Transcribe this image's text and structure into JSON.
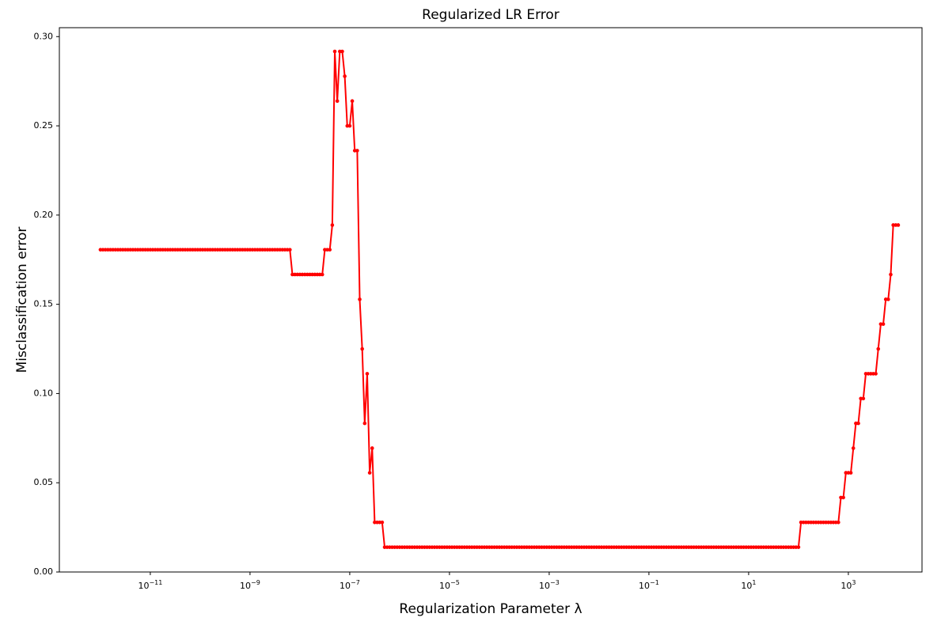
{
  "chart_data": {
    "type": "line",
    "title": "Regularized LR Error",
    "x_label": "Regularization Parameter λ",
    "y_label": "Misclassification error",
    "x_scale": "log",
    "markers": true,
    "line_width": 2,
    "xlim": [
      1.5e-13,
      30000
    ],
    "ylim": [
      0,
      0.305
    ],
    "xticks": [
      {
        "value": 1e-11,
        "label": "10−11"
      },
      {
        "value": 1e-09,
        "label": "10−9"
      },
      {
        "value": 1e-07,
        "label": "10−7"
      },
      {
        "value": 1e-05,
        "label": "10−5"
      },
      {
        "value": 0.001,
        "label": "10−3"
      },
      {
        "value": 0.1,
        "label": "10−1"
      },
      {
        "value": 10,
        "label": "101"
      },
      {
        "value": 1000,
        "label": "103"
      }
    ],
    "yticks": [
      {
        "value": 0,
        "label": "0.00"
      },
      {
        "value": 0.05,
        "label": "0.05"
      },
      {
        "value": 0.1,
        "label": "0.10"
      },
      {
        "value": 0.15,
        "label": "0.15"
      },
      {
        "value": 0.2,
        "label": "0.20"
      },
      {
        "value": 0.25,
        "label": "0.25"
      },
      {
        "value": 0.3,
        "label": "0.30"
      }
    ],
    "x": [
      1e-12,
      1.122e-12,
      1.259e-12,
      1.413e-12,
      1.585e-12,
      1.778e-12,
      1.995e-12,
      2.239e-12,
      2.512e-12,
      2.818e-12,
      3.162e-12,
      3.548e-12,
      3.981e-12,
      4.467e-12,
      5.012e-12,
      5.623e-12,
      6.31e-12,
      7.079e-12,
      7.943e-12,
      8.913e-12,
      1e-11,
      1.122e-11,
      1.259e-11,
      1.413e-11,
      1.585e-11,
      1.778e-11,
      1.995e-11,
      2.239e-11,
      2.512e-11,
      2.818e-11,
      3.162e-11,
      3.548e-11,
      3.981e-11,
      4.467e-11,
      5.012e-11,
      5.623e-11,
      6.31e-11,
      7.079e-11,
      7.943e-11,
      8.913e-11,
      1e-10,
      1.122e-10,
      1.259e-10,
      1.413e-10,
      1.585e-10,
      1.778e-10,
      1.995e-10,
      2.239e-10,
      2.512e-10,
      2.818e-10,
      3.162e-10,
      3.548e-10,
      3.981e-10,
      4.467e-10,
      5.012e-10,
      5.623e-10,
      6.31e-10,
      7.079e-10,
      7.943e-10,
      8.913e-10,
      1e-09,
      1.122e-09,
      1.259e-09,
      1.413e-09,
      1.585e-09,
      1.778e-09,
      1.995e-09,
      2.239e-09,
      2.512e-09,
      2.818e-09,
      3.162e-09,
      3.548e-09,
      3.981e-09,
      4.467e-09,
      5.012e-09,
      5.623e-09,
      6.31e-09,
      7.079e-09,
      7.943e-09,
      8.913e-09,
      1e-08,
      1.122e-08,
      1.259e-08,
      1.413e-08,
      1.585e-08,
      1.778e-08,
      1.995e-08,
      2.239e-08,
      2.512e-08,
      2.818e-08,
      3.162e-08,
      3.548e-08,
      3.981e-08,
      4.467e-08,
      5.012e-08,
      5.623e-08,
      6.31e-08,
      7.079e-08,
      7.943e-08,
      8.913e-08,
      1e-07,
      1.122e-07,
      1.259e-07,
      1.413e-07,
      1.585e-07,
      1.778e-07,
      1.995e-07,
      2.239e-07,
      2.512e-07,
      2.818e-07,
      3.162e-07,
      3.548e-07,
      3.981e-07,
      4.467e-07,
      5.012e-07,
      5.623e-07,
      6.31e-07,
      7.079e-07,
      7.943e-07,
      8.913e-07,
      1e-06,
      1.122e-06,
      1.259e-06,
      1.413e-06,
      1.585e-06,
      1.778e-06,
      1.995e-06,
      2.239e-06,
      2.512e-06,
      2.818e-06,
      3.162e-06,
      3.548e-06,
      3.981e-06,
      4.467e-06,
      5.012e-06,
      5.623e-06,
      6.31e-06,
      7.079e-06,
      7.943e-06,
      8.913e-06,
      1e-05,
      1.122e-05,
      1.259e-05,
      1.413e-05,
      1.585e-05,
      1.778e-05,
      1.995e-05,
      2.239e-05,
      2.512e-05,
      2.818e-05,
      3.162e-05,
      3.548e-05,
      3.981e-05,
      4.467e-05,
      5.012e-05,
      5.623e-05,
      6.31e-05,
      7.079e-05,
      7.943e-05,
      8.913e-05,
      0.0001,
      0.0001122,
      0.0001259,
      0.0001413,
      0.0001585,
      0.0001778,
      0.0001995,
      0.0002239,
      0.0002512,
      0.0002818,
      0.0003162,
      0.0003548,
      0.0003981,
      0.0004467,
      0.0005012,
      0.0005623,
      0.000631,
      0.0007079,
      0.0007943,
      0.0008913,
      0.001,
      0.001122,
      0.001259,
      0.001413,
      0.001585,
      0.001778,
      0.001995,
      0.002239,
      0.002512,
      0.002818,
      0.003162,
      0.003548,
      0.003981,
      0.004467,
      0.005012,
      0.005623,
      0.00631,
      0.007079,
      0.007943,
      0.008913,
      0.01,
      0.01122,
      0.01259,
      0.01413,
      0.01585,
      0.01778,
      0.01995,
      0.02239,
      0.02512,
      0.02818,
      0.03162,
      0.03548,
      0.03981,
      0.04467,
      0.05012,
      0.05623,
      0.0631,
      0.07079,
      0.07943,
      0.08913,
      0.1,
      0.1122,
      0.1259,
      0.1413,
      0.1585,
      0.1778,
      0.1995,
      0.2239,
      0.2512,
      0.2818,
      0.3162,
      0.3548,
      0.3981,
      0.4467,
      0.5012,
      0.5623,
      0.631,
      0.7079,
      0.7943,
      0.8913,
      1,
      1.122,
      1.259,
      1.413,
      1.585,
      1.778,
      1.995,
      2.239,
      2.512,
      2.818,
      3.162,
      3.548,
      3.981,
      4.467,
      5.012,
      5.623,
      6.31,
      7.079,
      7.943,
      8.913,
      10,
      11.22,
      12.59,
      14.13,
      15.85,
      17.78,
      19.95,
      22.39,
      25.12,
      28.18,
      31.62,
      35.48,
      39.81,
      44.67,
      50.12,
      56.23,
      63.1,
      70.79,
      79.43,
      89.13,
      100,
      112.2,
      125.9,
      141.3,
      158.5,
      177.8,
      199.5,
      223.9,
      251.2,
      281.8,
      316.2,
      354.8,
      398.1,
      446.7,
      501.2,
      562.3,
      631,
      707.9,
      794.3,
      891.3,
      1000,
      1122,
      1259,
      1413,
      1585,
      1778,
      1995,
      2239,
      2512,
      2818,
      3162,
      3548,
      3981,
      4467,
      5012,
      5623,
      6310,
      7079,
      7943,
      8913,
      10000
    ],
    "series": [
      {
        "color": "#ff0000",
        "values": [
          0.1806,
          0.1806,
          0.1806,
          0.1806,
          0.1806,
          0.1806,
          0.1806,
          0.1806,
          0.1806,
          0.1806,
          0.1806,
          0.1806,
          0.1806,
          0.1806,
          0.1806,
          0.1806,
          0.1806,
          0.1806,
          0.1806,
          0.1806,
          0.1806,
          0.1806,
          0.1806,
          0.1806,
          0.1806,
          0.1806,
          0.1806,
          0.1806,
          0.1806,
          0.1806,
          0.1806,
          0.1806,
          0.1806,
          0.1806,
          0.1806,
          0.1806,
          0.1806,
          0.1806,
          0.1806,
          0.1806,
          0.1806,
          0.1806,
          0.1806,
          0.1806,
          0.1806,
          0.1806,
          0.1806,
          0.1806,
          0.1806,
          0.1806,
          0.1806,
          0.1806,
          0.1806,
          0.1806,
          0.1806,
          0.1806,
          0.1806,
          0.1806,
          0.1806,
          0.1806,
          0.1806,
          0.1806,
          0.1806,
          0.1806,
          0.1806,
          0.1806,
          0.1806,
          0.1806,
          0.1806,
          0.1806,
          0.1806,
          0.1806,
          0.1806,
          0.1806,
          0.1806,
          0.1806,
          0.1806,
          0.1667,
          0.1667,
          0.1667,
          0.1667,
          0.1667,
          0.1667,
          0.1667,
          0.1667,
          0.1667,
          0.1667,
          0.1667,
          0.1667,
          0.1667,
          0.1806,
          0.1806,
          0.1806,
          0.1944,
          0.2917,
          0.2639,
          0.2917,
          0.2917,
          0.2778,
          0.25,
          0.25,
          0.2639,
          0.2361,
          0.2361,
          0.1528,
          0.125,
          0.0833,
          0.1111,
          0.0556,
          0.0694,
          0.0278,
          0.0278,
          0.0278,
          0.0278,
          0.0139,
          0.0139,
          0.0139,
          0.0139,
          0.0139,
          0.0139,
          0.0139,
          0.0139,
          0.0139,
          0.0139,
          0.0139,
          0.0139,
          0.0139,
          0.0139,
          0.0139,
          0.0139,
          0.0139,
          0.0139,
          0.0139,
          0.0139,
          0.0139,
          0.0139,
          0.0139,
          0.0139,
          0.0139,
          0.0139,
          0.0139,
          0.0139,
          0.0139,
          0.0139,
          0.0139,
          0.0139,
          0.0139,
          0.0139,
          0.0139,
          0.0139,
          0.0139,
          0.0139,
          0.0139,
          0.0139,
          0.0139,
          0.0139,
          0.0139,
          0.0139,
          0.0139,
          0.0139,
          0.0139,
          0.0139,
          0.0139,
          0.0139,
          0.0139,
          0.0139,
          0.0139,
          0.0139,
          0.0139,
          0.0139,
          0.0139,
          0.0139,
          0.0139,
          0.0139,
          0.0139,
          0.0139,
          0.0139,
          0.0139,
          0.0139,
          0.0139,
          0.0139,
          0.0139,
          0.0139,
          0.0139,
          0.0139,
          0.0139,
          0.0139,
          0.0139,
          0.0139,
          0.0139,
          0.0139,
          0.0139,
          0.0139,
          0.0139,
          0.0139,
          0.0139,
          0.0139,
          0.0139,
          0.0139,
          0.0139,
          0.0139,
          0.0139,
          0.0139,
          0.0139,
          0.0139,
          0.0139,
          0.0139,
          0.0139,
          0.0139,
          0.0139,
          0.0139,
          0.0139,
          0.0139,
          0.0139,
          0.0139,
          0.0139,
          0.0139,
          0.0139,
          0.0139,
          0.0139,
          0.0139,
          0.0139,
          0.0139,
          0.0139,
          0.0139,
          0.0139,
          0.0139,
          0.0139,
          0.0139,
          0.0139,
          0.0139,
          0.0139,
          0.0139,
          0.0139,
          0.0139,
          0.0139,
          0.0139,
          0.0139,
          0.0139,
          0.0139,
          0.0139,
          0.0139,
          0.0139,
          0.0139,
          0.0139,
          0.0139,
          0.0139,
          0.0139,
          0.0139,
          0.0139,
          0.0139,
          0.0139,
          0.0139,
          0.0139,
          0.0139,
          0.0139,
          0.0139,
          0.0139,
          0.0139,
          0.0139,
          0.0139,
          0.0139,
          0.0139,
          0.0139,
          0.0139,
          0.0139,
          0.0139,
          0.0139,
          0.0139,
          0.0139,
          0.0139,
          0.0139,
          0.0139,
          0.0139,
          0.0139,
          0.0139,
          0.0139,
          0.0139,
          0.0139,
          0.0139,
          0.0139,
          0.0278,
          0.0278,
          0.0278,
          0.0278,
          0.0278,
          0.0278,
          0.0278,
          0.0278,
          0.0278,
          0.0278,
          0.0278,
          0.0278,
          0.0278,
          0.0278,
          0.0278,
          0.0278,
          0.0417,
          0.0417,
          0.0556,
          0.0556,
          0.0556,
          0.0694,
          0.0833,
          0.0833,
          0.0972,
          0.0972,
          0.1111,
          0.1111,
          0.1111,
          0.1111,
          0.1111,
          0.125,
          0.1389,
          0.1389,
          0.1528,
          0.1528,
          0.1667,
          0.1944,
          0.1944,
          0.1944
        ]
      }
    ]
  }
}
